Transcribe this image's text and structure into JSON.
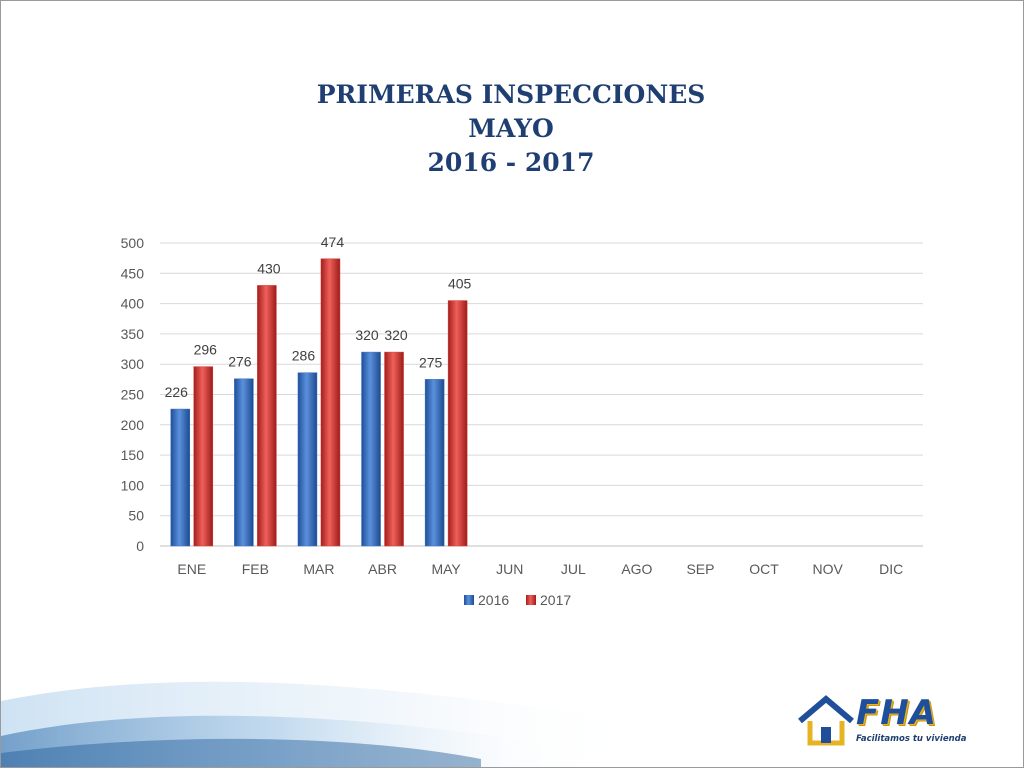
{
  "title": {
    "line1": "PRIMERAS INSPECCIONES",
    "line2": "MAYO",
    "line3": "2016 -  2017"
  },
  "chart_data": {
    "type": "bar",
    "categories": [
      "ENE",
      "FEB",
      "MAR",
      "ABR",
      "MAY",
      "JUN",
      "JUL",
      "AGO",
      "SEP",
      "OCT",
      "NOV",
      "DIC"
    ],
    "series": [
      {
        "name": "2016",
        "values": [
          226,
          276,
          286,
          320,
          275,
          null,
          null,
          null,
          null,
          null,
          null,
          null
        ],
        "color": "#3a6fc4"
      },
      {
        "name": "2017",
        "values": [
          296,
          430,
          474,
          320,
          405,
          null,
          null,
          null,
          null,
          null,
          null,
          null
        ],
        "color": "#d63a35"
      }
    ],
    "ylim": [
      0,
      500
    ],
    "yticks": [
      0,
      50,
      100,
      150,
      200,
      250,
      300,
      350,
      400,
      450,
      500
    ],
    "grid": true,
    "legend": "bottom",
    "data_labels": true
  },
  "logo": {
    "text": "FHA",
    "tagline": "Facilitamos tu vivienda",
    "colors": {
      "primary": "#1f4f9a",
      "accent": "#e6b422"
    }
  }
}
